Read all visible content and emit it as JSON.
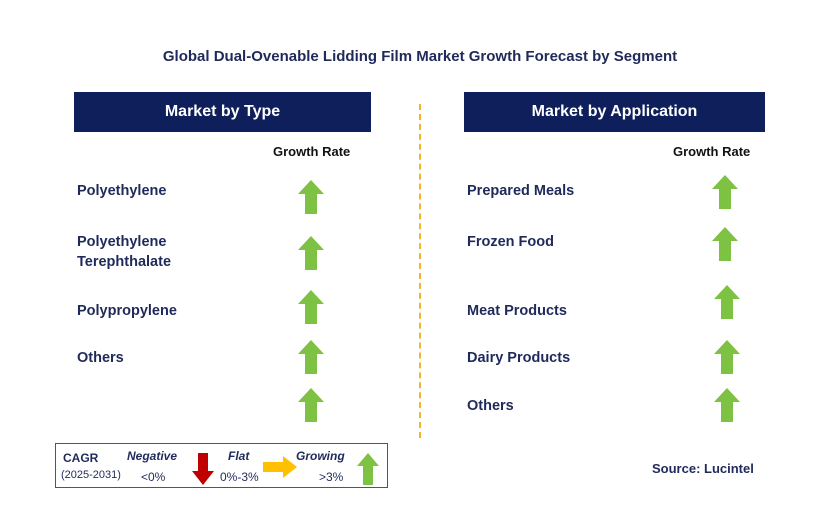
{
  "title": "Global Dual-Ovenable Lidding Film Market Growth Forecast by Segment",
  "colors": {
    "header_bg": "#0f1f5c",
    "up_arrow": "#7dc242",
    "down_arrow": "#c00000",
    "flat_arrow": "#ffc000",
    "divider": "#f2b531"
  },
  "left_panel": {
    "header": "Market by Type",
    "growth_rate_label": "Growth Rate",
    "rows": [
      {
        "label_line1": "Polyethylene",
        "label_line2": "",
        "trend": "growing"
      },
      {
        "label_line1": "Polyethylene",
        "label_line2": "Terephthalate",
        "trend": "growing"
      },
      {
        "label_line1": "Polypropylene",
        "label_line2": "",
        "trend": "growing"
      },
      {
        "label_line1": "Others",
        "label_line2": "",
        "trend": "growing"
      },
      {
        "label_line1": "",
        "label_line2": "",
        "trend": "growing"
      }
    ]
  },
  "right_panel": {
    "header": "Market by Application",
    "growth_rate_label": "Growth Rate",
    "rows": [
      {
        "label": "Prepared Meals",
        "trend": "growing"
      },
      {
        "label": "Frozen Food",
        "trend": "growing"
      },
      {
        "label": "Meat Products",
        "trend": "growing"
      },
      {
        "label": "Dairy Products",
        "trend": "growing"
      },
      {
        "label": "Others",
        "trend": "growing"
      }
    ]
  },
  "legend": {
    "cagr_label": "CAGR",
    "period": "(2025-2031)",
    "negative_label": "Negative",
    "negative_range": "<0%",
    "flat_label": "Flat",
    "flat_range": "0%-3%",
    "growing_label": "Growing",
    "growing_range": ">3%"
  },
  "source": "Source: Lucintel"
}
